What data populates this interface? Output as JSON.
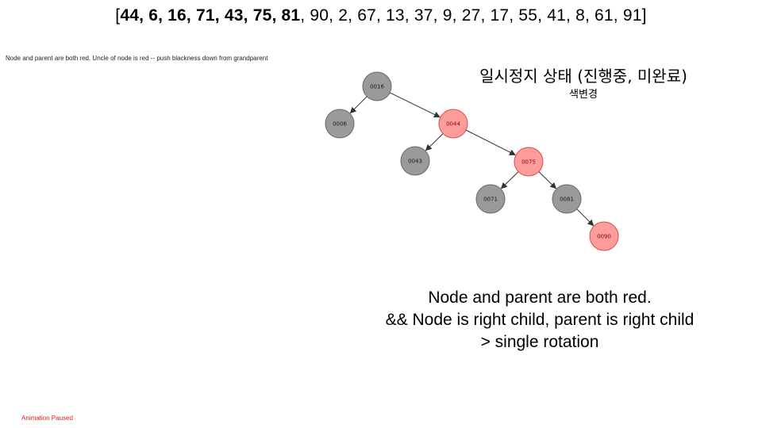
{
  "sequence": {
    "open": "[",
    "close": "]",
    "items": [
      {
        "text": "44",
        "bold": true
      },
      {
        "text": "6",
        "bold": true
      },
      {
        "text": "16",
        "bold": true
      },
      {
        "text": "71",
        "bold": true
      },
      {
        "text": "43",
        "bold": true
      },
      {
        "text": "75",
        "bold": true
      },
      {
        "text": "81",
        "bold": true
      },
      {
        "text": "90",
        "bold": false
      },
      {
        "text": "2",
        "bold": false
      },
      {
        "text": "67",
        "bold": false
      },
      {
        "text": "13",
        "bold": false
      },
      {
        "text": "37",
        "bold": false
      },
      {
        "text": "9",
        "bold": false
      },
      {
        "text": "27",
        "bold": false
      },
      {
        "text": "17",
        "bold": false
      },
      {
        "text": "55",
        "bold": false
      },
      {
        "text": "41",
        "bold": false
      },
      {
        "text": "8",
        "bold": false
      },
      {
        "text": "61",
        "bold": false
      },
      {
        "text": "91",
        "bold": false
      }
    ]
  },
  "status_small": "Node and parent are both red.  Uncle of node is red -- push blackness down from grandparent",
  "state": {
    "title": "일시정지 상태 (진행중, 미완료)",
    "subtitle": "색변경"
  },
  "tree": {
    "colors": {
      "black_fill": "#9a9a9a",
      "black_stroke": "#6a6a6a",
      "red_fill": "#ff9d9d",
      "red_stroke": "#d94a4a",
      "red_text": "#8a0000",
      "black_text": "#1a1a1a",
      "edge": "#333333"
    },
    "nodes": [
      {
        "id": "n16",
        "label": "0016",
        "color": "black"
      },
      {
        "id": "n06",
        "label": "0006",
        "color": "black"
      },
      {
        "id": "n44",
        "label": "0044",
        "color": "red"
      },
      {
        "id": "n43",
        "label": "0043",
        "color": "black"
      },
      {
        "id": "n75",
        "label": "0075",
        "color": "red"
      },
      {
        "id": "n71",
        "label": "0071",
        "color": "black"
      },
      {
        "id": "n81",
        "label": "0081",
        "color": "black"
      },
      {
        "id": "n90",
        "label": "0090",
        "color": "red"
      }
    ],
    "edges": [
      {
        "from": "n16",
        "to": "n06"
      },
      {
        "from": "n16",
        "to": "n44"
      },
      {
        "from": "n44",
        "to": "n43"
      },
      {
        "from": "n44",
        "to": "n75"
      },
      {
        "from": "n75",
        "to": "n71"
      },
      {
        "from": "n75",
        "to": "n81"
      },
      {
        "from": "n81",
        "to": "n90"
      }
    ]
  },
  "explanation": {
    "line1": "Node and parent are both red.",
    "line2": "&& Node is right child, parent is right child",
    "line3": "> single rotation"
  },
  "animation_status": "Animation Paused"
}
